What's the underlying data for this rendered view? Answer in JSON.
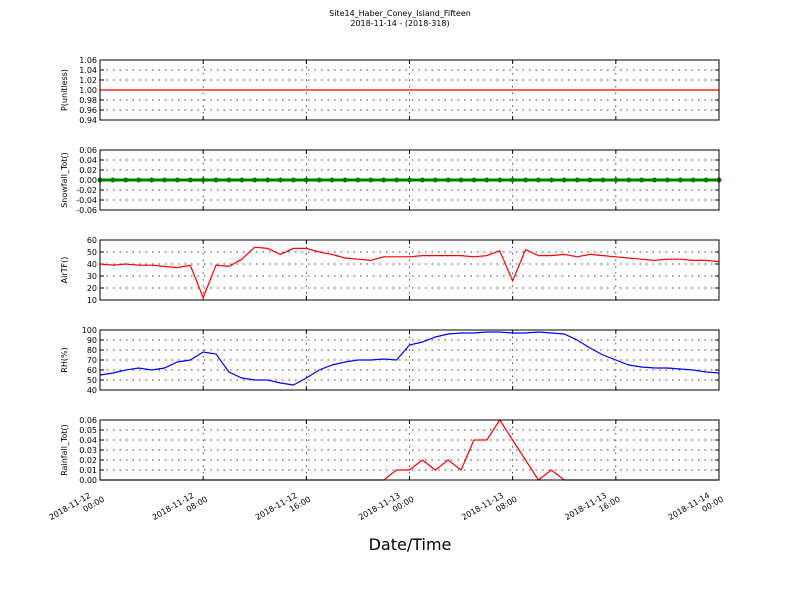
{
  "chart_data": [
    {
      "type": "line",
      "title": "Site14_Haber_Coney_Island_Fifteen",
      "subtitle": "2018-11-14 - (2018-318)",
      "ylabel": "P(unitless)",
      "x": [
        "2018-11-12 00:00",
        "2018-11-12 01:00",
        "2018-11-12 02:00",
        "2018-11-12 03:00",
        "2018-11-12 04:00",
        "2018-11-12 05:00",
        "2018-11-12 06:00",
        "2018-11-12 07:00",
        "2018-11-12 08:00",
        "2018-11-12 09:00",
        "2018-11-12 10:00",
        "2018-11-12 11:00",
        "2018-11-12 12:00",
        "2018-11-12 13:00",
        "2018-11-12 14:00",
        "2018-11-12 15:00",
        "2018-11-12 16:00",
        "2018-11-12 17:00",
        "2018-11-12 18:00",
        "2018-11-12 19:00",
        "2018-11-12 20:00",
        "2018-11-12 21:00",
        "2018-11-12 22:00",
        "2018-11-12 23:00",
        "2018-11-13 00:00",
        "2018-11-13 01:00",
        "2018-11-13 02:00",
        "2018-11-13 03:00",
        "2018-11-13 04:00",
        "2018-11-13 05:00",
        "2018-11-13 06:00",
        "2018-11-13 07:00",
        "2018-11-13 08:00",
        "2018-11-13 09:00",
        "2018-11-13 10:00",
        "2018-11-13 11:00",
        "2018-11-13 12:00",
        "2018-11-13 13:00",
        "2018-11-13 14:00",
        "2018-11-13 15:00",
        "2018-11-13 16:00",
        "2018-11-13 17:00",
        "2018-11-13 18:00",
        "2018-11-13 19:00",
        "2018-11-13 20:00",
        "2018-11-13 21:00",
        "2018-11-13 22:00",
        "2018-11-13 23:00",
        "2018-11-14 00:00"
      ],
      "series": [
        {
          "name": "P",
          "color": "#ff0000",
          "values": [
            1,
            1,
            1,
            1,
            1,
            1,
            1,
            1,
            1,
            1,
            1,
            1,
            1,
            1,
            1,
            1,
            1,
            1,
            1,
            1,
            1,
            1,
            1,
            1,
            1,
            1,
            1,
            1,
            1,
            1,
            1,
            1,
            1,
            1,
            1,
            1,
            1,
            1,
            1,
            1,
            1,
            1,
            1,
            1,
            1,
            1,
            1,
            1,
            1
          ]
        }
      ],
      "xlim": [
        "2018-11-12 00:00",
        "2018-11-14 00:00"
      ],
      "ylim": [
        0.94,
        1.06
      ],
      "yticks": [
        0.94,
        0.96,
        0.98,
        {
          "value": 1,
          "label": "1.00"
        },
        1.02,
        1.04,
        1.06
      ],
      "grid": true
    },
    {
      "type": "line",
      "ylabel": "Snowfall_Tot()",
      "x": [
        "2018-11-12 00:00",
        "2018-11-12 01:00",
        "2018-11-12 02:00",
        "2018-11-12 03:00",
        "2018-11-12 04:00",
        "2018-11-12 05:00",
        "2018-11-12 06:00",
        "2018-11-12 07:00",
        "2018-11-12 08:00",
        "2018-11-12 09:00",
        "2018-11-12 10:00",
        "2018-11-12 11:00",
        "2018-11-12 12:00",
        "2018-11-12 13:00",
        "2018-11-12 14:00",
        "2018-11-12 15:00",
        "2018-11-12 16:00",
        "2018-11-12 17:00",
        "2018-11-12 18:00",
        "2018-11-12 19:00",
        "2018-11-12 20:00",
        "2018-11-12 21:00",
        "2018-11-12 22:00",
        "2018-11-12 23:00",
        "2018-11-13 00:00",
        "2018-11-13 01:00",
        "2018-11-13 02:00",
        "2018-11-13 03:00",
        "2018-11-13 04:00",
        "2018-11-13 05:00",
        "2018-11-13 06:00",
        "2018-11-13 07:00",
        "2018-11-13 08:00",
        "2018-11-13 09:00",
        "2018-11-13 10:00",
        "2018-11-13 11:00",
        "2018-11-13 12:00",
        "2018-11-13 13:00",
        "2018-11-13 14:00",
        "2018-11-13 15:00",
        "2018-11-13 16:00",
        "2018-11-13 17:00",
        "2018-11-13 18:00",
        "2018-11-13 19:00",
        "2018-11-13 20:00",
        "2018-11-13 21:00",
        "2018-11-13 22:00",
        "2018-11-13 23:00",
        "2018-11-14 00:00"
      ],
      "series": [
        {
          "name": "Snowfall_Tot",
          "color": "#008000",
          "marker": true,
          "values": [
            0,
            0,
            0,
            0,
            0,
            0,
            0,
            0,
            0,
            0,
            0,
            0,
            0,
            0,
            0,
            0,
            0,
            0,
            0,
            0,
            0,
            0,
            0,
            0,
            0,
            0,
            0,
            0,
            0,
            0,
            0,
            0,
            0,
            0,
            0,
            0,
            0,
            0,
            0,
            0,
            0,
            0,
            0,
            0,
            0,
            0,
            0,
            0,
            0
          ]
        }
      ],
      "xlim": [
        "2018-11-12 00:00",
        "2018-11-14 00:00"
      ],
      "ylim": [
        -0.06,
        0.06
      ],
      "yticks": [
        -0.06,
        -0.04,
        -0.02,
        {
          "value": 0,
          "label": "0.00"
        },
        0.02,
        0.04,
        0.06
      ],
      "grid": true
    },
    {
      "type": "line",
      "ylabel": "AirTF()",
      "x": [
        "2018-11-12 00:00",
        "2018-11-12 01:00",
        "2018-11-12 02:00",
        "2018-11-12 03:00",
        "2018-11-12 04:00",
        "2018-11-12 05:00",
        "2018-11-12 06:00",
        "2018-11-12 07:00",
        "2018-11-12 08:00",
        "2018-11-12 09:00",
        "2018-11-12 10:00",
        "2018-11-12 11:00",
        "2018-11-12 12:00",
        "2018-11-12 13:00",
        "2018-11-12 14:00",
        "2018-11-12 15:00",
        "2018-11-12 16:00",
        "2018-11-12 17:00",
        "2018-11-12 18:00",
        "2018-11-12 19:00",
        "2018-11-12 20:00",
        "2018-11-12 21:00",
        "2018-11-12 22:00",
        "2018-11-12 23:00",
        "2018-11-13 00:00",
        "2018-11-13 01:00",
        "2018-11-13 02:00",
        "2018-11-13 03:00",
        "2018-11-13 04:00",
        "2018-11-13 05:00",
        "2018-11-13 06:00",
        "2018-11-13 07:00",
        "2018-11-13 08:00",
        "2018-11-13 09:00",
        "2018-11-13 10:00",
        "2018-11-13 11:00",
        "2018-11-13 12:00",
        "2018-11-13 13:00",
        "2018-11-13 14:00",
        "2018-11-13 15:00",
        "2018-11-13 16:00",
        "2018-11-13 17:00",
        "2018-11-13 18:00",
        "2018-11-13 19:00",
        "2018-11-13 20:00",
        "2018-11-13 21:00",
        "2018-11-13 22:00",
        "2018-11-13 23:00",
        "2018-11-14 00:00"
      ],
      "series": [
        {
          "name": "AirTF",
          "color": "#ff0000",
          "values": [
            40,
            39,
            40,
            39,
            39,
            38,
            37,
            39,
            12,
            39,
            38,
            44,
            54,
            53,
            48,
            53,
            53,
            50,
            48,
            45,
            44,
            43,
            46,
            46,
            46,
            47,
            47,
            47,
            47,
            46,
            47,
            51,
            26,
            52,
            47,
            47,
            48,
            46,
            48,
            47,
            46,
            45,
            44,
            43,
            44,
            44,
            43,
            43,
            42
          ]
        }
      ],
      "xlim": [
        "2018-11-12 00:00",
        "2018-11-14 00:00"
      ],
      "ylim": [
        10,
        60
      ],
      "yticks": [
        10,
        20,
        30,
        40,
        50,
        60
      ],
      "grid": true
    },
    {
      "type": "line",
      "ylabel": "RH(%)",
      "x": [
        "2018-11-12 00:00",
        "2018-11-12 01:00",
        "2018-11-12 02:00",
        "2018-11-12 03:00",
        "2018-11-12 04:00",
        "2018-11-12 05:00",
        "2018-11-12 06:00",
        "2018-11-12 07:00",
        "2018-11-12 08:00",
        "2018-11-12 09:00",
        "2018-11-12 10:00",
        "2018-11-12 11:00",
        "2018-11-12 12:00",
        "2018-11-12 13:00",
        "2018-11-12 14:00",
        "2018-11-12 15:00",
        "2018-11-12 16:00",
        "2018-11-12 17:00",
        "2018-11-12 18:00",
        "2018-11-12 19:00",
        "2018-11-12 20:00",
        "2018-11-12 21:00",
        "2018-11-12 22:00",
        "2018-11-12 23:00",
        "2018-11-13 00:00",
        "2018-11-13 01:00",
        "2018-11-13 02:00",
        "2018-11-13 03:00",
        "2018-11-13 04:00",
        "2018-11-13 05:00",
        "2018-11-13 06:00",
        "2018-11-13 07:00",
        "2018-11-13 08:00",
        "2018-11-13 09:00",
        "2018-11-13 10:00",
        "2018-11-13 11:00",
        "2018-11-13 12:00",
        "2018-11-13 13:00",
        "2018-11-13 14:00",
        "2018-11-13 15:00",
        "2018-11-13 16:00",
        "2018-11-13 17:00",
        "2018-11-13 18:00",
        "2018-11-13 19:00",
        "2018-11-13 20:00",
        "2018-11-13 21:00",
        "2018-11-13 22:00",
        "2018-11-13 23:00",
        "2018-11-14 00:00"
      ],
      "series": [
        {
          "name": "RH",
          "color": "#0000ff",
          "values": [
            55,
            57,
            60,
            62,
            60,
            62,
            68,
            70,
            78,
            76,
            58,
            52,
            50,
            50,
            47,
            45,
            52,
            60,
            65,
            68,
            70,
            70,
            71,
            70,
            85,
            88,
            93,
            96,
            97,
            97,
            98,
            98,
            97,
            97,
            98,
            97,
            96,
            90,
            82,
            75,
            70,
            65,
            63,
            62,
            62,
            61,
            60,
            58,
            57
          ]
        }
      ],
      "xlim": [
        "2018-11-12 00:00",
        "2018-11-14 00:00"
      ],
      "ylim": [
        40,
        100
      ],
      "yticks": [
        40,
        50,
        60,
        70,
        80,
        90,
        100
      ],
      "grid": true
    },
    {
      "type": "line",
      "ylabel": "Rainfall_Tot()",
      "xlabel": "Date/Time",
      "x": [
        "2018-11-12 00:00",
        "2018-11-12 01:00",
        "2018-11-12 02:00",
        "2018-11-12 03:00",
        "2018-11-12 04:00",
        "2018-11-12 05:00",
        "2018-11-12 06:00",
        "2018-11-12 07:00",
        "2018-11-12 08:00",
        "2018-11-12 09:00",
        "2018-11-12 10:00",
        "2018-11-12 11:00",
        "2018-11-12 12:00",
        "2018-11-12 13:00",
        "2018-11-12 14:00",
        "2018-11-12 15:00",
        "2018-11-12 16:00",
        "2018-11-12 17:00",
        "2018-11-12 18:00",
        "2018-11-12 19:00",
        "2018-11-12 20:00",
        "2018-11-12 21:00",
        "2018-11-12 22:00",
        "2018-11-12 23:00",
        "2018-11-13 00:00",
        "2018-11-13 01:00",
        "2018-11-13 02:00",
        "2018-11-13 03:00",
        "2018-11-13 04:00",
        "2018-11-13 05:00",
        "2018-11-13 06:00",
        "2018-11-13 07:00",
        "2018-11-13 08:00",
        "2018-11-13 09:00",
        "2018-11-13 10:00",
        "2018-11-13 11:00",
        "2018-11-13 12:00",
        "2018-11-13 13:00",
        "2018-11-13 14:00",
        "2018-11-13 15:00",
        "2018-11-13 16:00",
        "2018-11-13 17:00",
        "2018-11-13 18:00",
        "2018-11-13 19:00",
        "2018-11-13 20:00",
        "2018-11-13 21:00",
        "2018-11-13 22:00",
        "2018-11-13 23:00",
        "2018-11-14 00:00"
      ],
      "series": [
        {
          "name": "Rainfall_Tot",
          "color": "#ff0000",
          "values": [
            0,
            0,
            0,
            0,
            0,
            0,
            0,
            0,
            0,
            0,
            0,
            0,
            0,
            0,
            0,
            0,
            0,
            0,
            0,
            0,
            0,
            0,
            0,
            0.01,
            0.01,
            0.02,
            0.01,
            0.02,
            0.01,
            0.04,
            0.04,
            0.06,
            0.04,
            0.02,
            0,
            0.01,
            0,
            0,
            0,
            0,
            0,
            0,
            0,
            0,
            0,
            0,
            0,
            0,
            0
          ]
        }
      ],
      "xlim": [
        "2018-11-12 00:00",
        "2018-11-14 00:00"
      ],
      "xticks": [
        {
          "value": "2018-11-12 00:00",
          "label": [
            "2018-11-12",
            "00:00"
          ]
        },
        {
          "value": "2018-11-12 08:00",
          "label": [
            "2018-11-12",
            "08:00"
          ]
        },
        {
          "value": "2018-11-12 16:00",
          "label": [
            "2018-11-12",
            "16:00"
          ]
        },
        {
          "value": "2018-11-13 00:00",
          "label": [
            "2018-11-13",
            "00:00"
          ]
        },
        {
          "value": "2018-11-13 08:00",
          "label": [
            "2018-11-13",
            "08:00"
          ]
        },
        {
          "value": "2018-11-13 16:00",
          "label": [
            "2018-11-13",
            "16:00"
          ]
        },
        {
          "value": "2018-11-14 00:00",
          "label": [
            "2018-11-14",
            "00:00"
          ]
        }
      ],
      "ylim": [
        0,
        0.06
      ],
      "yticks": [
        {
          "value": 0,
          "label": "0.00"
        },
        0.01,
        0.02,
        0.03,
        0.04,
        0.05,
        0.06
      ],
      "grid": true
    }
  ]
}
